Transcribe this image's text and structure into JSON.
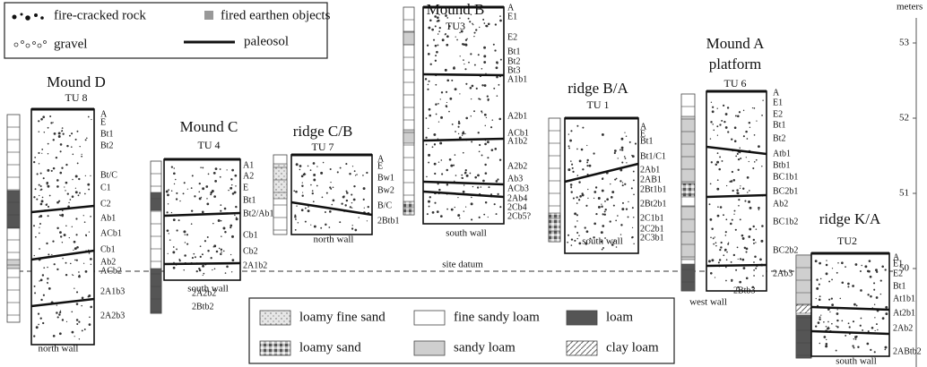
{
  "legend_top": {
    "items": [
      "fire-cracked rock",
      "fired earthen objects",
      "gravel",
      "paleosol"
    ]
  },
  "legend_bottom": {
    "items": [
      "loamy fine sand",
      "fine sandy loam",
      "loam",
      "loamy sand",
      "sandy loam",
      "clay loam"
    ]
  },
  "scale": {
    "unit": "meters",
    "ticks": [
      53,
      52,
      51,
      50
    ]
  },
  "datum_label": "site datum",
  "profiles": [
    {
      "title": [
        "Mound D"
      ],
      "unit": "TU 8",
      "wall": "north wall",
      "horizons": [
        "A",
        "E",
        "Bt1",
        "Bt2",
        "Bt/C",
        "C1",
        "C2",
        "Ab1",
        "ACb1",
        "Cb1",
        "Ab2",
        "ACb2",
        "2A1b3",
        "2A2b3"
      ]
    },
    {
      "title": [
        "Mound C"
      ],
      "unit": "TU 4",
      "wall": "south wall",
      "horizons": [
        "A1",
        "A2",
        "E",
        "Bt1",
        "Bt2/Ab1",
        "Cb1",
        "Cb2",
        "2A1b2",
        "2A2b2",
        "2Btb2"
      ]
    },
    {
      "title": [
        "ridge C/B"
      ],
      "unit": "TU 7",
      "wall": "north wall",
      "horizons": [
        "A",
        "E",
        "Bw1",
        "Bw2",
        "B/C",
        "2Btb1"
      ]
    },
    {
      "title": [
        "Mound B"
      ],
      "unit": "TU3",
      "wall": "south wall",
      "horizons": [
        "A",
        "E1",
        "E2",
        "Bt1",
        "Bt2",
        "Bt3",
        "A1b1",
        "A2b1",
        "ACb1",
        "A1b2",
        "A2b2",
        "Ab3",
        "ACb3",
        "2Ab4",
        "2Cb4",
        "2Cb5?"
      ]
    },
    {
      "title": [
        "ridge B/A"
      ],
      "unit": "TU 1",
      "wall": "south wall",
      "horizons": [
        "A",
        "E",
        "Bt1",
        "Bt1/C1",
        "2Ab1",
        "2AB1",
        "2Bt1b1",
        "2Bt2b1",
        "2C1b1",
        "2C2b1",
        "2C3b1"
      ]
    },
    {
      "title": [
        "Mound A",
        "platform"
      ],
      "unit": "TU 6",
      "wall": "west wall",
      "horizons": [
        "A",
        "E1",
        "E2",
        "Bt1",
        "Bt2",
        "Atb1",
        "Btb1",
        "BC1b1",
        "BC2b1",
        "Ab2",
        "BC1b2",
        "BC2b2",
        "2Ab3",
        "2Btb3"
      ]
    },
    {
      "title": [
        "ridge K/A"
      ],
      "unit": "TU2",
      "wall": "south wall",
      "horizons": [
        "A",
        "E1",
        "E2",
        "Bt1",
        "At1b1",
        "At2b1",
        "2Ab2",
        "2ABtb2"
      ]
    }
  ]
}
